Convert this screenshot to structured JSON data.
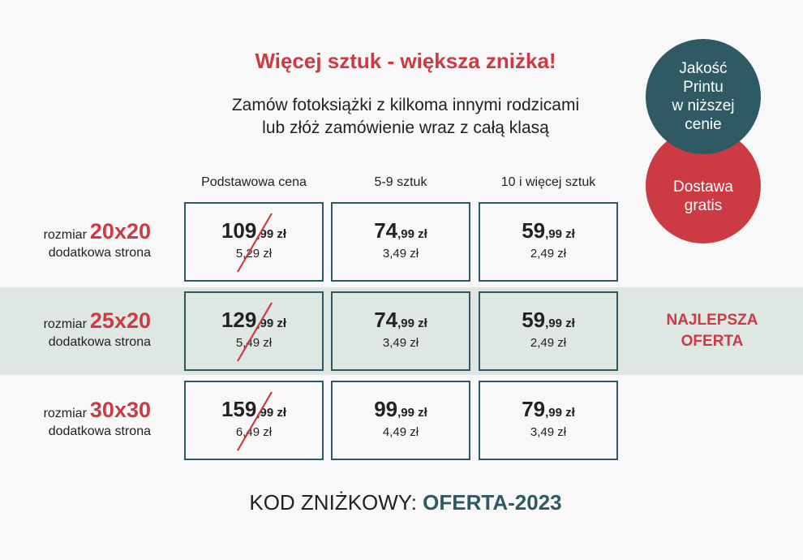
{
  "headline": "Więcej sztuk - większa zniżka!",
  "subline": [
    "Zamów fotoksiążki z kilkoma innymi rodzicami",
    "lub złóż zamówienie wraz z całą klasą"
  ],
  "badges": {
    "quality": [
      "Jakość",
      "Printu",
      "w niższej",
      "cenie"
    ],
    "delivery": [
      "Dostawa",
      "gratis"
    ]
  },
  "columns": [
    "Podstawowa cena",
    "5-9 sztuk",
    "10 i więcej sztuk"
  ],
  "rows": [
    {
      "prefix": "rozmiar",
      "size": "20x20",
      "sublabel": "dodatkowa strona",
      "cells": [
        {
          "main": "109",
          "decimals": ",99 zł",
          "extra": "5,29 zł"
        },
        {
          "main": "74",
          "decimals": ",99 zł",
          "extra": "3,49 zł"
        },
        {
          "main": "59",
          "decimals": ",99 zł",
          "extra": "2,49 zł"
        }
      ]
    },
    {
      "prefix": "rozmiar",
      "size": "25x20",
      "sublabel": "dodatkowa strona",
      "cells": [
        {
          "main": "129",
          "decimals": ",99 zł",
          "extra": "5,49 zł"
        },
        {
          "main": "74",
          "decimals": ",99 zł",
          "extra": "3,49 zł"
        },
        {
          "main": "59",
          "decimals": ",99 zł",
          "extra": "2,49 zł"
        }
      ]
    },
    {
      "prefix": "rozmiar",
      "size": "30x30",
      "sublabel": "dodatkowa strona",
      "cells": [
        {
          "main": "159",
          "decimals": ",99 zł",
          "extra": "6,49 zł"
        },
        {
          "main": "99",
          "decimals": ",99 zł",
          "extra": "4,49 zł"
        },
        {
          "main": "79",
          "decimals": ",99 zł",
          "extra": "3,49 zł"
        }
      ]
    }
  ],
  "best_offer": [
    "NAJLEPSZA",
    "OFERTA"
  ],
  "discount": {
    "label": "KOD ZNIŻKOWY:",
    "code": "OFERTA-2023"
  },
  "colors": {
    "accent_red": "#cc3a43",
    "accent_teal": "#2f5a63",
    "band": "#dfe7e2"
  }
}
